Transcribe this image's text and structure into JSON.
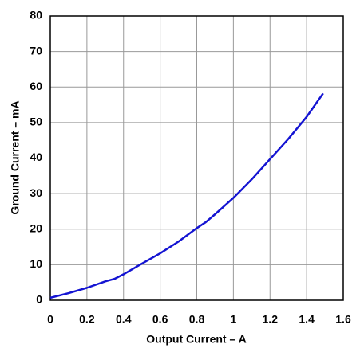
{
  "chart_data": {
    "type": "line",
    "x_label": "Output Current – A",
    "y_label": "Ground Current – mA",
    "x": [
      0,
      0.1,
      0.2,
      0.3,
      0.35,
      0.4,
      0.5,
      0.6,
      0.7,
      0.8,
      0.85,
      0.9,
      1.0,
      1.1,
      1.2,
      1.3,
      1.4,
      1.49
    ],
    "series": [
      {
        "color": "#1414d2",
        "values": [
          0.7,
          2,
          3.5,
          5.3,
          6,
          7.3,
          10.3,
          13.2,
          16.5,
          20.3,
          22,
          24.2,
          28.8,
          34,
          39.7,
          45.4,
          51.6,
          58.2
        ]
      }
    ],
    "xlim": [
      0,
      1.6
    ],
    "xticks": [
      0,
      0.2,
      0.4,
      0.6,
      0.8,
      1,
      1.2,
      1.4,
      1.6
    ],
    "ylim": [
      0,
      80
    ],
    "yticks": [
      0,
      10,
      20,
      30,
      40,
      50,
      60,
      70,
      80
    ],
    "grid": true
  }
}
